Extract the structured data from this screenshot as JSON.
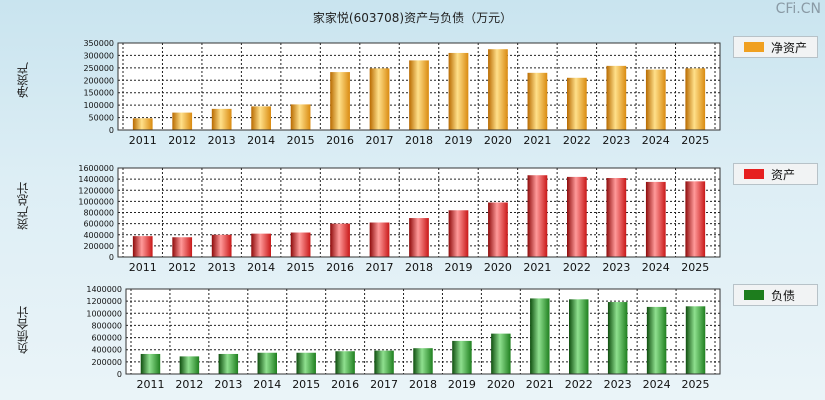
{
  "title": "家家悦(603708)资产与负债（万元）",
  "brand": "CFi.CN",
  "chart_data": [
    {
      "type": "bar",
      "ylabel": "净资产",
      "legend": "净资产",
      "color": "#f0a020",
      "categories": [
        "2011",
        "2012",
        "2013",
        "2014",
        "2015",
        "2016",
        "2017",
        "2018",
        "2019",
        "2020",
        "2021",
        "2022",
        "2023",
        "2024",
        "2025"
      ],
      "values": [
        47000,
        70000,
        85000,
        95000,
        103000,
        233000,
        248000,
        280000,
        310000,
        325000,
        230000,
        210000,
        258000,
        243000,
        248000
      ],
      "ylim": [
        0,
        350000
      ],
      "yticks": [
        0,
        50000,
        100000,
        150000,
        200000,
        250000,
        300000,
        350000
      ]
    },
    {
      "type": "bar",
      "ylabel": "资产总计",
      "legend": "资产",
      "color": "#e02020",
      "categories": [
        "2011",
        "2012",
        "2013",
        "2014",
        "2015",
        "2016",
        "2017",
        "2018",
        "2019",
        "2020",
        "2021",
        "2022",
        "2023",
        "2024",
        "2025"
      ],
      "values": [
        375000,
        355000,
        400000,
        420000,
        440000,
        600000,
        620000,
        700000,
        840000,
        980000,
        1470000,
        1440000,
        1420000,
        1350000,
        1360000
      ],
      "ylim": [
        0,
        1600000
      ],
      "yticks": [
        0,
        200000,
        400000,
        600000,
        800000,
        1000000,
        1200000,
        1400000,
        1600000
      ]
    },
    {
      "type": "bar",
      "ylabel": "负债合计",
      "legend": "负债",
      "color": "#2a8a2a",
      "categories": [
        "2011",
        "2012",
        "2013",
        "2014",
        "2015",
        "2016",
        "2017",
        "2018",
        "2019",
        "2020",
        "2021",
        "2022",
        "2023",
        "2024",
        "2025"
      ],
      "values": [
        330000,
        290000,
        330000,
        350000,
        350000,
        375000,
        385000,
        425000,
        545000,
        665000,
        1245000,
        1230000,
        1185000,
        1105000,
        1115000
      ],
      "ylim": [
        0,
        1400000
      ],
      "yticks": [
        0,
        200000,
        400000,
        600000,
        800000,
        1000000,
        1200000,
        1400000
      ]
    }
  ]
}
